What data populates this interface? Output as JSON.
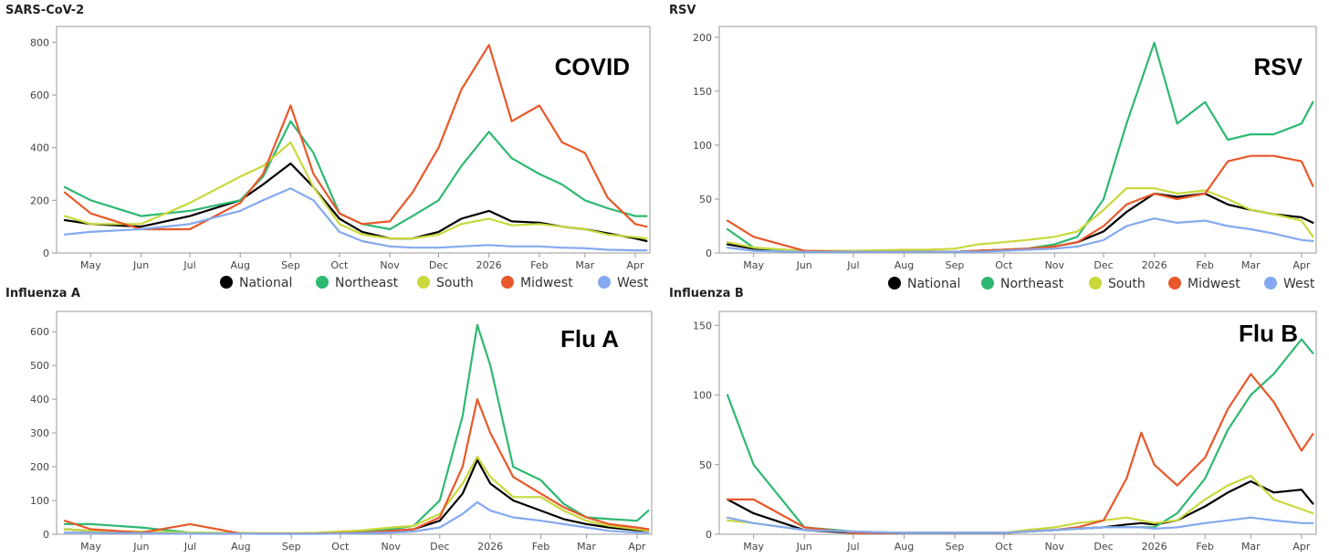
{
  "legend": [
    {
      "name": "National",
      "color": "#000000"
    },
    {
      "name": "Northeast",
      "color": "#2eb872"
    },
    {
      "name": "South",
      "color": "#c9d83b"
    },
    {
      "name": "Midwest",
      "color": "#e8582a"
    },
    {
      "name": "West",
      "color": "#84a9f0"
    }
  ],
  "chart_data": [
    {
      "type": "line",
      "title": "SARS-CoV-2",
      "label": "COVID",
      "ylim": [
        0,
        860
      ],
      "yticks": [
        0,
        200,
        400,
        600,
        800
      ],
      "xlabels": [
        "May",
        "Jun",
        "Jul",
        "Aug",
        "Sep",
        "Oct",
        "Nov",
        "Dec",
        "2026",
        "Feb",
        "Mar",
        "Apr"
      ],
      "x": [
        "Apr 15",
        "May 1",
        "Jun 1",
        "Jul 1",
        "Aug 1",
        "Aug 15",
        "Sep 1",
        "Sep 15",
        "Oct 1",
        "Oct 15",
        "Nov 1",
        "Nov 15",
        "Dec 1",
        "Dec 15",
        "Jan 1",
        "Jan 15",
        "Feb 1",
        "Feb 15",
        "Mar 1",
        "Mar 15",
        "Apr 1",
        "Apr 8"
      ],
      "series": [
        {
          "name": "National",
          "color": "#000000",
          "values": [
            125,
            110,
            100,
            140,
            200,
            260,
            340,
            250,
            130,
            80,
            55,
            55,
            80,
            130,
            160,
            120,
            115,
            100,
            90,
            75,
            55,
            45
          ]
        },
        {
          "name": "Northeast",
          "color": "#2eb872",
          "values": [
            250,
            200,
            140,
            160,
            200,
            290,
            500,
            380,
            150,
            110,
            90,
            140,
            200,
            330,
            460,
            360,
            300,
            260,
            200,
            170,
            140,
            140
          ]
        },
        {
          "name": "South",
          "color": "#c9d83b",
          "values": [
            140,
            110,
            110,
            190,
            290,
            330,
            420,
            250,
            110,
            70,
            55,
            55,
            70,
            110,
            130,
            105,
            110,
            100,
            90,
            70,
            60,
            55
          ]
        },
        {
          "name": "Midwest",
          "color": "#e8582a",
          "values": [
            230,
            150,
            90,
            90,
            190,
            300,
            560,
            300,
            150,
            110,
            120,
            230,
            400,
            620,
            790,
            500,
            560,
            420,
            380,
            210,
            110,
            100
          ]
        },
        {
          "name": "West",
          "color": "#84a9f0",
          "values": [
            70,
            80,
            90,
            110,
            160,
            200,
            245,
            200,
            80,
            45,
            25,
            20,
            20,
            25,
            30,
            25,
            25,
            20,
            18,
            12,
            10,
            10
          ]
        }
      ]
    },
    {
      "type": "line",
      "title": "RSV",
      "label": "RSV",
      "ylim": [
        0,
        210
      ],
      "yticks": [
        0,
        50,
        100,
        150,
        200
      ],
      "xlabels": [
        "May",
        "Jun",
        "Jul",
        "Aug",
        "Sep",
        "Oct",
        "Nov",
        "Dec",
        "2026",
        "Feb",
        "Mar",
        "Apr"
      ],
      "x": [
        "Apr 15",
        "May 1",
        "Jun 1",
        "Jul 1",
        "Aug 1",
        "Aug 15",
        "Sep 1",
        "Sep 15",
        "Oct 1",
        "Oct 15",
        "Nov 1",
        "Nov 15",
        "Dec 1",
        "Dec 15",
        "Jan 1",
        "Jan 15",
        "Feb 1",
        "Feb 15",
        "Mar 1",
        "Mar 15",
        "Apr 1",
        "Apr 8"
      ],
      "series": [
        {
          "name": "National",
          "color": "#000000",
          "values": [
            8,
            4,
            1,
            1,
            1,
            1,
            1,
            2,
            3,
            4,
            6,
            10,
            20,
            38,
            55,
            52,
            55,
            45,
            40,
            36,
            33,
            28
          ]
        },
        {
          "name": "Northeast",
          "color": "#2eb872",
          "values": [
            22,
            5,
            1,
            1,
            1,
            1,
            1,
            2,
            3,
            4,
            8,
            15,
            50,
            120,
            195,
            120,
            140,
            105,
            110,
            110,
            120,
            140
          ]
        },
        {
          "name": "South",
          "color": "#c9d83b",
          "values": [
            10,
            5,
            2,
            2,
            3,
            3,
            4,
            8,
            10,
            12,
            15,
            20,
            40,
            60,
            60,
            55,
            58,
            50,
            40,
            36,
            30,
            15
          ]
        },
        {
          "name": "Midwest",
          "color": "#e8582a",
          "values": [
            30,
            15,
            2,
            1,
            1,
            1,
            1,
            2,
            3,
            4,
            6,
            10,
            25,
            45,
            55,
            50,
            55,
            85,
            90,
            90,
            85,
            62
          ]
        },
        {
          "name": "West",
          "color": "#84a9f0",
          "values": [
            5,
            2,
            1,
            1,
            1,
            1,
            1,
            1,
            2,
            3,
            4,
            6,
            12,
            25,
            32,
            28,
            30,
            25,
            22,
            18,
            12,
            11
          ]
        }
      ]
    },
    {
      "type": "line",
      "title": "Influenza A",
      "label": "Flu A",
      "ylim": [
        0,
        660
      ],
      "yticks": [
        0,
        100,
        200,
        300,
        400,
        500,
        600
      ],
      "xlabels": [
        "May",
        "Jun",
        "Jul",
        "Aug",
        "Sep",
        "Oct",
        "Nov",
        "Dec",
        "2026",
        "Feb",
        "Mar",
        "Apr"
      ],
      "x": [
        "Apr 15",
        "May 1",
        "Jun 1",
        "Jul 1",
        "Aug 1",
        "Aug 15",
        "Sep 1",
        "Sep 15",
        "Oct 1",
        "Oct 15",
        "Nov 1",
        "Nov 15",
        "Dec 1",
        "Dec 15",
        "Dec 24",
        "Jan 1",
        "Jan 15",
        "Feb 1",
        "Feb 15",
        "Mar 1",
        "Mar 15",
        "Apr 1",
        "Apr 8"
      ],
      "series": [
        {
          "name": "National",
          "color": "#000000",
          "values": [
            15,
            10,
            5,
            3,
            2,
            2,
            2,
            2,
            3,
            5,
            10,
            15,
            40,
            120,
            220,
            150,
            100,
            70,
            45,
            30,
            20,
            12,
            10
          ]
        },
        {
          "name": "Northeast",
          "color": "#2eb872",
          "values": [
            30,
            30,
            20,
            5,
            3,
            2,
            2,
            3,
            5,
            8,
            15,
            25,
            100,
            350,
            620,
            500,
            200,
            160,
            90,
            50,
            45,
            40,
            70
          ]
        },
        {
          "name": "South",
          "color": "#c9d83b",
          "values": [
            15,
            10,
            8,
            5,
            4,
            3,
            3,
            4,
            8,
            12,
            20,
            25,
            60,
            150,
            230,
            170,
            110,
            110,
            70,
            40,
            25,
            15,
            10
          ]
        },
        {
          "name": "Midwest",
          "color": "#e8582a",
          "values": [
            40,
            15,
            5,
            30,
            2,
            2,
            2,
            2,
            3,
            5,
            10,
            15,
            50,
            200,
            400,
            300,
            170,
            120,
            80,
            50,
            30,
            20,
            15
          ]
        },
        {
          "name": "West",
          "color": "#84a9f0",
          "values": [
            5,
            5,
            3,
            2,
            2,
            1,
            1,
            1,
            2,
            3,
            5,
            8,
            20,
            60,
            95,
            70,
            50,
            40,
            30,
            20,
            10,
            5,
            5
          ]
        }
      ]
    },
    {
      "type": "line",
      "title": "Influenza B",
      "label": "Flu B",
      "ylim": [
        0,
        160
      ],
      "yticks": [
        0,
        50,
        100,
        150
      ],
      "xlabels": [
        "May",
        "Jun",
        "Jul",
        "Aug",
        "Sep",
        "Oct",
        "Nov",
        "Dec",
        "2026",
        "Feb",
        "Mar",
        "Apr"
      ],
      "x": [
        "Apr 15",
        "May 1",
        "Jun 1",
        "Jul 1",
        "Aug 1",
        "Aug 15",
        "Sep 1",
        "Sep 15",
        "Oct 1",
        "Oct 15",
        "Nov 1",
        "Nov 15",
        "Dec 1",
        "Dec 15",
        "Dec 24",
        "Jan 1",
        "Jan 15",
        "Feb 1",
        "Feb 15",
        "Mar 1",
        "Mar 15",
        "Apr 1",
        "Apr 8"
      ],
      "series": [
        {
          "name": "National",
          "color": "#000000",
          "values": [
            25,
            15,
            3,
            1,
            1,
            1,
            1,
            1,
            1,
            2,
            3,
            4,
            5,
            7,
            8,
            7,
            10,
            20,
            30,
            38,
            30,
            32,
            22
          ]
        },
        {
          "name": "Northeast",
          "color": "#2eb872",
          "values": [
            100,
            50,
            5,
            2,
            1,
            1,
            1,
            1,
            1,
            2,
            3,
            4,
            5,
            5,
            5,
            5,
            15,
            40,
            75,
            100,
            115,
            140,
            130
          ]
        },
        {
          "name": "South",
          "color": "#c9d83b",
          "values": [
            10,
            8,
            3,
            2,
            1,
            1,
            1,
            1,
            1,
            3,
            5,
            8,
            10,
            12,
            10,
            8,
            10,
            25,
            35,
            42,
            25,
            18,
            15
          ]
        },
        {
          "name": "Midwest",
          "color": "#e8582a",
          "values": [
            25,
            25,
            5,
            1,
            1,
            1,
            1,
            1,
            1,
            2,
            3,
            5,
            10,
            40,
            73,
            50,
            35,
            55,
            90,
            115,
            95,
            60,
            72
          ]
        },
        {
          "name": "West",
          "color": "#84a9f0",
          "values": [
            12,
            8,
            3,
            2,
            1,
            1,
            1,
            1,
            1,
            2,
            3,
            4,
            5,
            5,
            5,
            4,
            5,
            8,
            10,
            12,
            10,
            8,
            8
          ]
        }
      ]
    }
  ]
}
